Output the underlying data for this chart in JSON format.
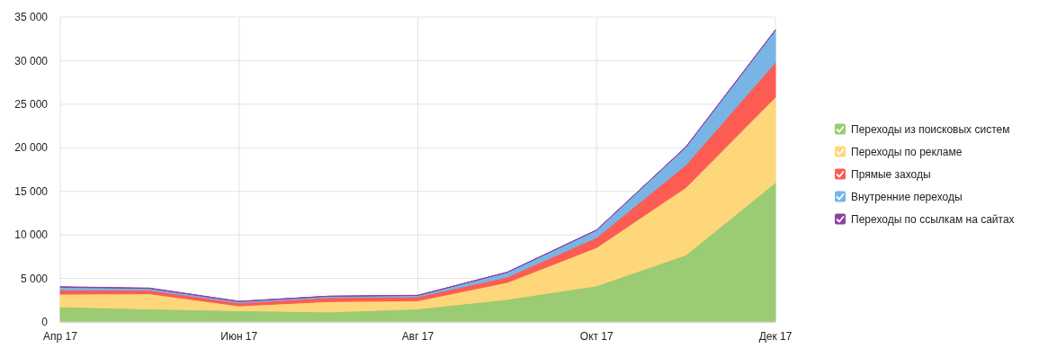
{
  "chart_data": {
    "type": "area",
    "stacked": true,
    "categories": [
      "Апр 17",
      null,
      "Июн 17",
      null,
      "Авг 17",
      null,
      "Окт 17",
      null,
      "Дек 17"
    ],
    "series": [
      {
        "name": "Переходы из поисковых систем",
        "color": "#9bcb73",
        "values": [
          1750,
          1500,
          1300,
          1150,
          1500,
          2600,
          4150,
          7700,
          16000
        ]
      },
      {
        "name": "Переходы по рекламе",
        "color": "#fdd77a",
        "values": [
          1450,
          1750,
          550,
          1200,
          950,
          1950,
          4400,
          7750,
          9800
        ]
      },
      {
        "name": "Прямые заходы",
        "color": "#fd5c53",
        "values": [
          500,
          400,
          350,
          450,
          450,
          600,
          1150,
          2600,
          4000
        ]
      },
      {
        "name": "Внутренние переходы",
        "color": "#78b4e4",
        "values": [
          300,
          200,
          150,
          150,
          150,
          550,
          850,
          2050,
          3700
        ]
      },
      {
        "name": "Переходы по ссылкам на сайтах",
        "color": "#8e3fa5",
        "values": [
          50,
          50,
          30,
          20,
          20,
          20,
          20,
          30,
          50
        ]
      }
    ],
    "ylim": [
      0,
      35000
    ],
    "yticks": [
      0,
      {
        "value": 5000,
        "label": "5 000"
      },
      {
        "value": 10000,
        "label": "10 000"
      },
      {
        "value": 15000,
        "label": "15 000"
      },
      {
        "value": 20000,
        "label": "20 000"
      },
      {
        "value": 25000,
        "label": "25 000"
      },
      {
        "value": 30000,
        "label": "30 000"
      },
      {
        "value": 35000,
        "label": "35 000"
      }
    ],
    "grid": true,
    "legend": "right"
  }
}
